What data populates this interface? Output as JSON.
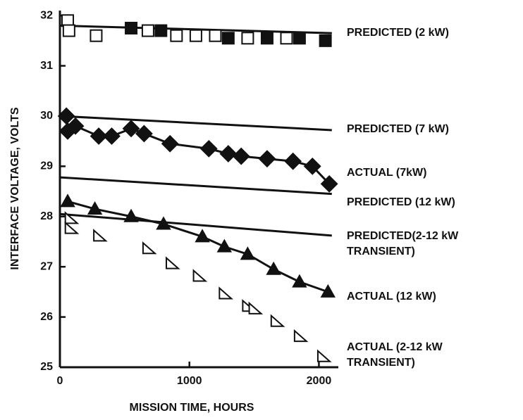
{
  "chart_data": {
    "type": "line",
    "xlabel": "MISSION TIME, HOURS",
    "ylabel": "INTERFACE VOLTAGE, VOLTS",
    "xlim": [
      0,
      2150
    ],
    "ylim": [
      25,
      32.1
    ],
    "xticks": [
      0,
      1000,
      2000
    ],
    "yticks": [
      25,
      26,
      27,
      28,
      29,
      30,
      31,
      32
    ],
    "grid": false,
    "series": [
      {
        "name": "PREDICTED (2 kW)",
        "color": "#111111",
        "line": true,
        "marker": "none",
        "x": [
          0,
          2100
        ],
        "values": [
          31.8,
          31.65
        ]
      },
      {
        "color": "#111111",
        "line": false,
        "marker": "square",
        "filled": true,
        "x": [
          550,
          780,
          1300,
          1600,
          1850,
          2050
        ],
        "values": [
          31.75,
          31.7,
          31.55,
          31.55,
          31.55,
          31.5
        ]
      },
      {
        "color": "#111111",
        "line": false,
        "marker": "square",
        "filled": false,
        "x": [
          60,
          70,
          280,
          680,
          900,
          1050,
          1200,
          1450,
          1750
        ],
        "values": [
          31.9,
          31.7,
          31.6,
          31.7,
          31.6,
          31.6,
          31.6,
          31.55,
          31.55
        ]
      },
      {
        "name": "PREDICTED (7 kW)",
        "color": "#111111",
        "line": true,
        "marker": "none",
        "x": [
          0,
          2100
        ],
        "values": [
          30.0,
          29.72
        ]
      },
      {
        "name": "ACTUAL (7kW)",
        "color": "#111111",
        "line": true,
        "marker": "diamond",
        "filled": true,
        "x": [
          50,
          60,
          120,
          300,
          400,
          550,
          650,
          850,
          1150,
          1300,
          1400,
          1600,
          1800,
          1950,
          2080
        ],
        "values": [
          30.0,
          29.7,
          29.8,
          29.6,
          29.6,
          29.75,
          29.65,
          29.45,
          29.35,
          29.25,
          29.2,
          29.15,
          29.1,
          29.0,
          28.65
        ]
      },
      {
        "name": "PREDICTED (12 kW)",
        "color": "#111111",
        "line": true,
        "marker": "none",
        "x": [
          0,
          2100
        ],
        "values": [
          28.78,
          28.45
        ]
      },
      {
        "name": "PREDICTED(2-12 kW\nTRANSIENT)",
        "color": "#111111",
        "line": true,
        "marker": "none",
        "x": [
          0,
          2100
        ],
        "values": [
          28.05,
          27.62
        ]
      },
      {
        "name": "ACTUAL (12 kW)",
        "color": "#111111",
        "line": true,
        "marker": "triangle",
        "filled": true,
        "x": [
          60,
          270,
          550,
          800,
          1100,
          1270,
          1450,
          1650,
          1850,
          2070
        ],
        "values": [
          28.3,
          28.15,
          28.0,
          27.85,
          27.6,
          27.4,
          27.25,
          26.95,
          26.7,
          26.5
        ]
      },
      {
        "name": "ACTUAL (2-12 kW\nTRANSIENT)",
        "color": "#111111",
        "line": false,
        "marker": "triangle",
        "filled": false,
        "x": [
          80,
          80,
          300,
          680,
          860,
          1070,
          1270,
          1450,
          1500,
          1670,
          1850,
          2030
        ],
        "values": [
          27.95,
          27.75,
          27.6,
          27.35,
          27.05,
          26.8,
          26.45,
          26.2,
          26.15,
          25.9,
          25.6,
          25.2
        ]
      }
    ]
  }
}
